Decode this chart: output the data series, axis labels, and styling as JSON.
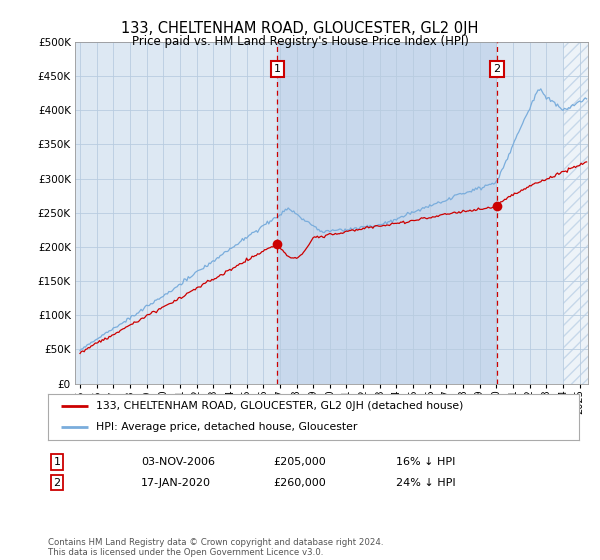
{
  "title": "133, CHELTENHAM ROAD, GLOUCESTER, GL2 0JH",
  "subtitle": "Price paid vs. HM Land Registry's House Price Index (HPI)",
  "legend_line1": "133, CHELTENHAM ROAD, GLOUCESTER, GL2 0JH (detached house)",
  "legend_line2": "HPI: Average price, detached house, Gloucester",
  "transaction1_date": "03-NOV-2006",
  "transaction1_price": "£205,000",
  "transaction1_note": "16% ↓ HPI",
  "transaction1_year": 2006.84,
  "transaction1_price_val": 205000,
  "transaction2_date": "17-JAN-2020",
  "transaction2_price": "£260,000",
  "transaction2_note": "24% ↓ HPI",
  "transaction2_year": 2020.04,
  "transaction2_price_val": 260000,
  "footer": "Contains HM Land Registry data © Crown copyright and database right 2024.\nThis data is licensed under the Open Government Licence v3.0.",
  "ylim_max": 500000,
  "xlim_start": 1994.7,
  "xlim_end": 2025.5,
  "hpi_color": "#7aaddc",
  "price_color": "#cc0000",
  "bg_color": "#dde8f3",
  "bg_color_mid": "#c8d8ec",
  "grid_color": "#b8cce0",
  "hatch_color": "#b0c8e0"
}
